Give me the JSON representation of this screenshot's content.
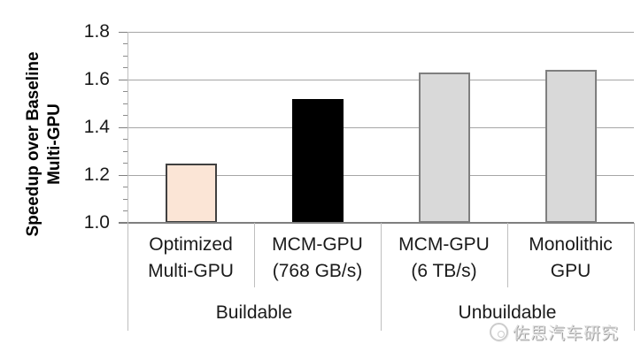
{
  "chart_data": {
    "type": "bar",
    "title": "",
    "ylabel": "Speedup over Baseline Multi-GPU",
    "ylabel_lines": [
      "Speedup over Baseline",
      "Multi-GPU"
    ],
    "ylim": [
      1.0,
      1.8
    ],
    "yticks": [
      1.0,
      1.2,
      1.4,
      1.6,
      1.8
    ],
    "ytick_labels": [
      "1.0",
      "1.2",
      "1.4",
      "1.6",
      "1.8"
    ],
    "minor_tick_step": 0.05,
    "grid": "horizontal-major",
    "legend": "none",
    "categories": [
      {
        "label": "Optimized Multi-GPU",
        "label_lines": [
          "Optimized",
          "Multi-GPU"
        ],
        "value": 1.25,
        "fill": "#FBE5D6",
        "border": "#404040",
        "group": "Buildable"
      },
      {
        "label": "MCM-GPU (768 GB/s)",
        "label_lines": [
          "MCM-GPU",
          "(768 GB/s)"
        ],
        "value": 1.52,
        "fill": "#000000",
        "border": "#000000",
        "group": "Buildable"
      },
      {
        "label": "MCM-GPU (6 TB/s)",
        "label_lines": [
          "MCM-GPU",
          "(6 TB/s)"
        ],
        "value": 1.63,
        "fill": "#D9D9D9",
        "border": "#7F7F7F",
        "group": "Unbuildable"
      },
      {
        "label": "Monolithic GPU",
        "label_lines": [
          "Monolithic",
          "GPU"
        ],
        "value": 1.64,
        "fill": "#D9D9D9",
        "border": "#7F7F7F",
        "group": "Unbuildable"
      }
    ],
    "groups": [
      {
        "label": "Buildable",
        "span": 2
      },
      {
        "label": "Unbuildable",
        "span": 2
      }
    ]
  },
  "watermark": {
    "icon": "car-logo-icon",
    "text": "佐思汽车研究"
  },
  "colors": {
    "gridline": "#A6A6A6",
    "axis_line": "#7F7F7F",
    "divider": "#BFBFBF",
    "text": "#1A1A1A",
    "background": "#FFFFFF"
  }
}
